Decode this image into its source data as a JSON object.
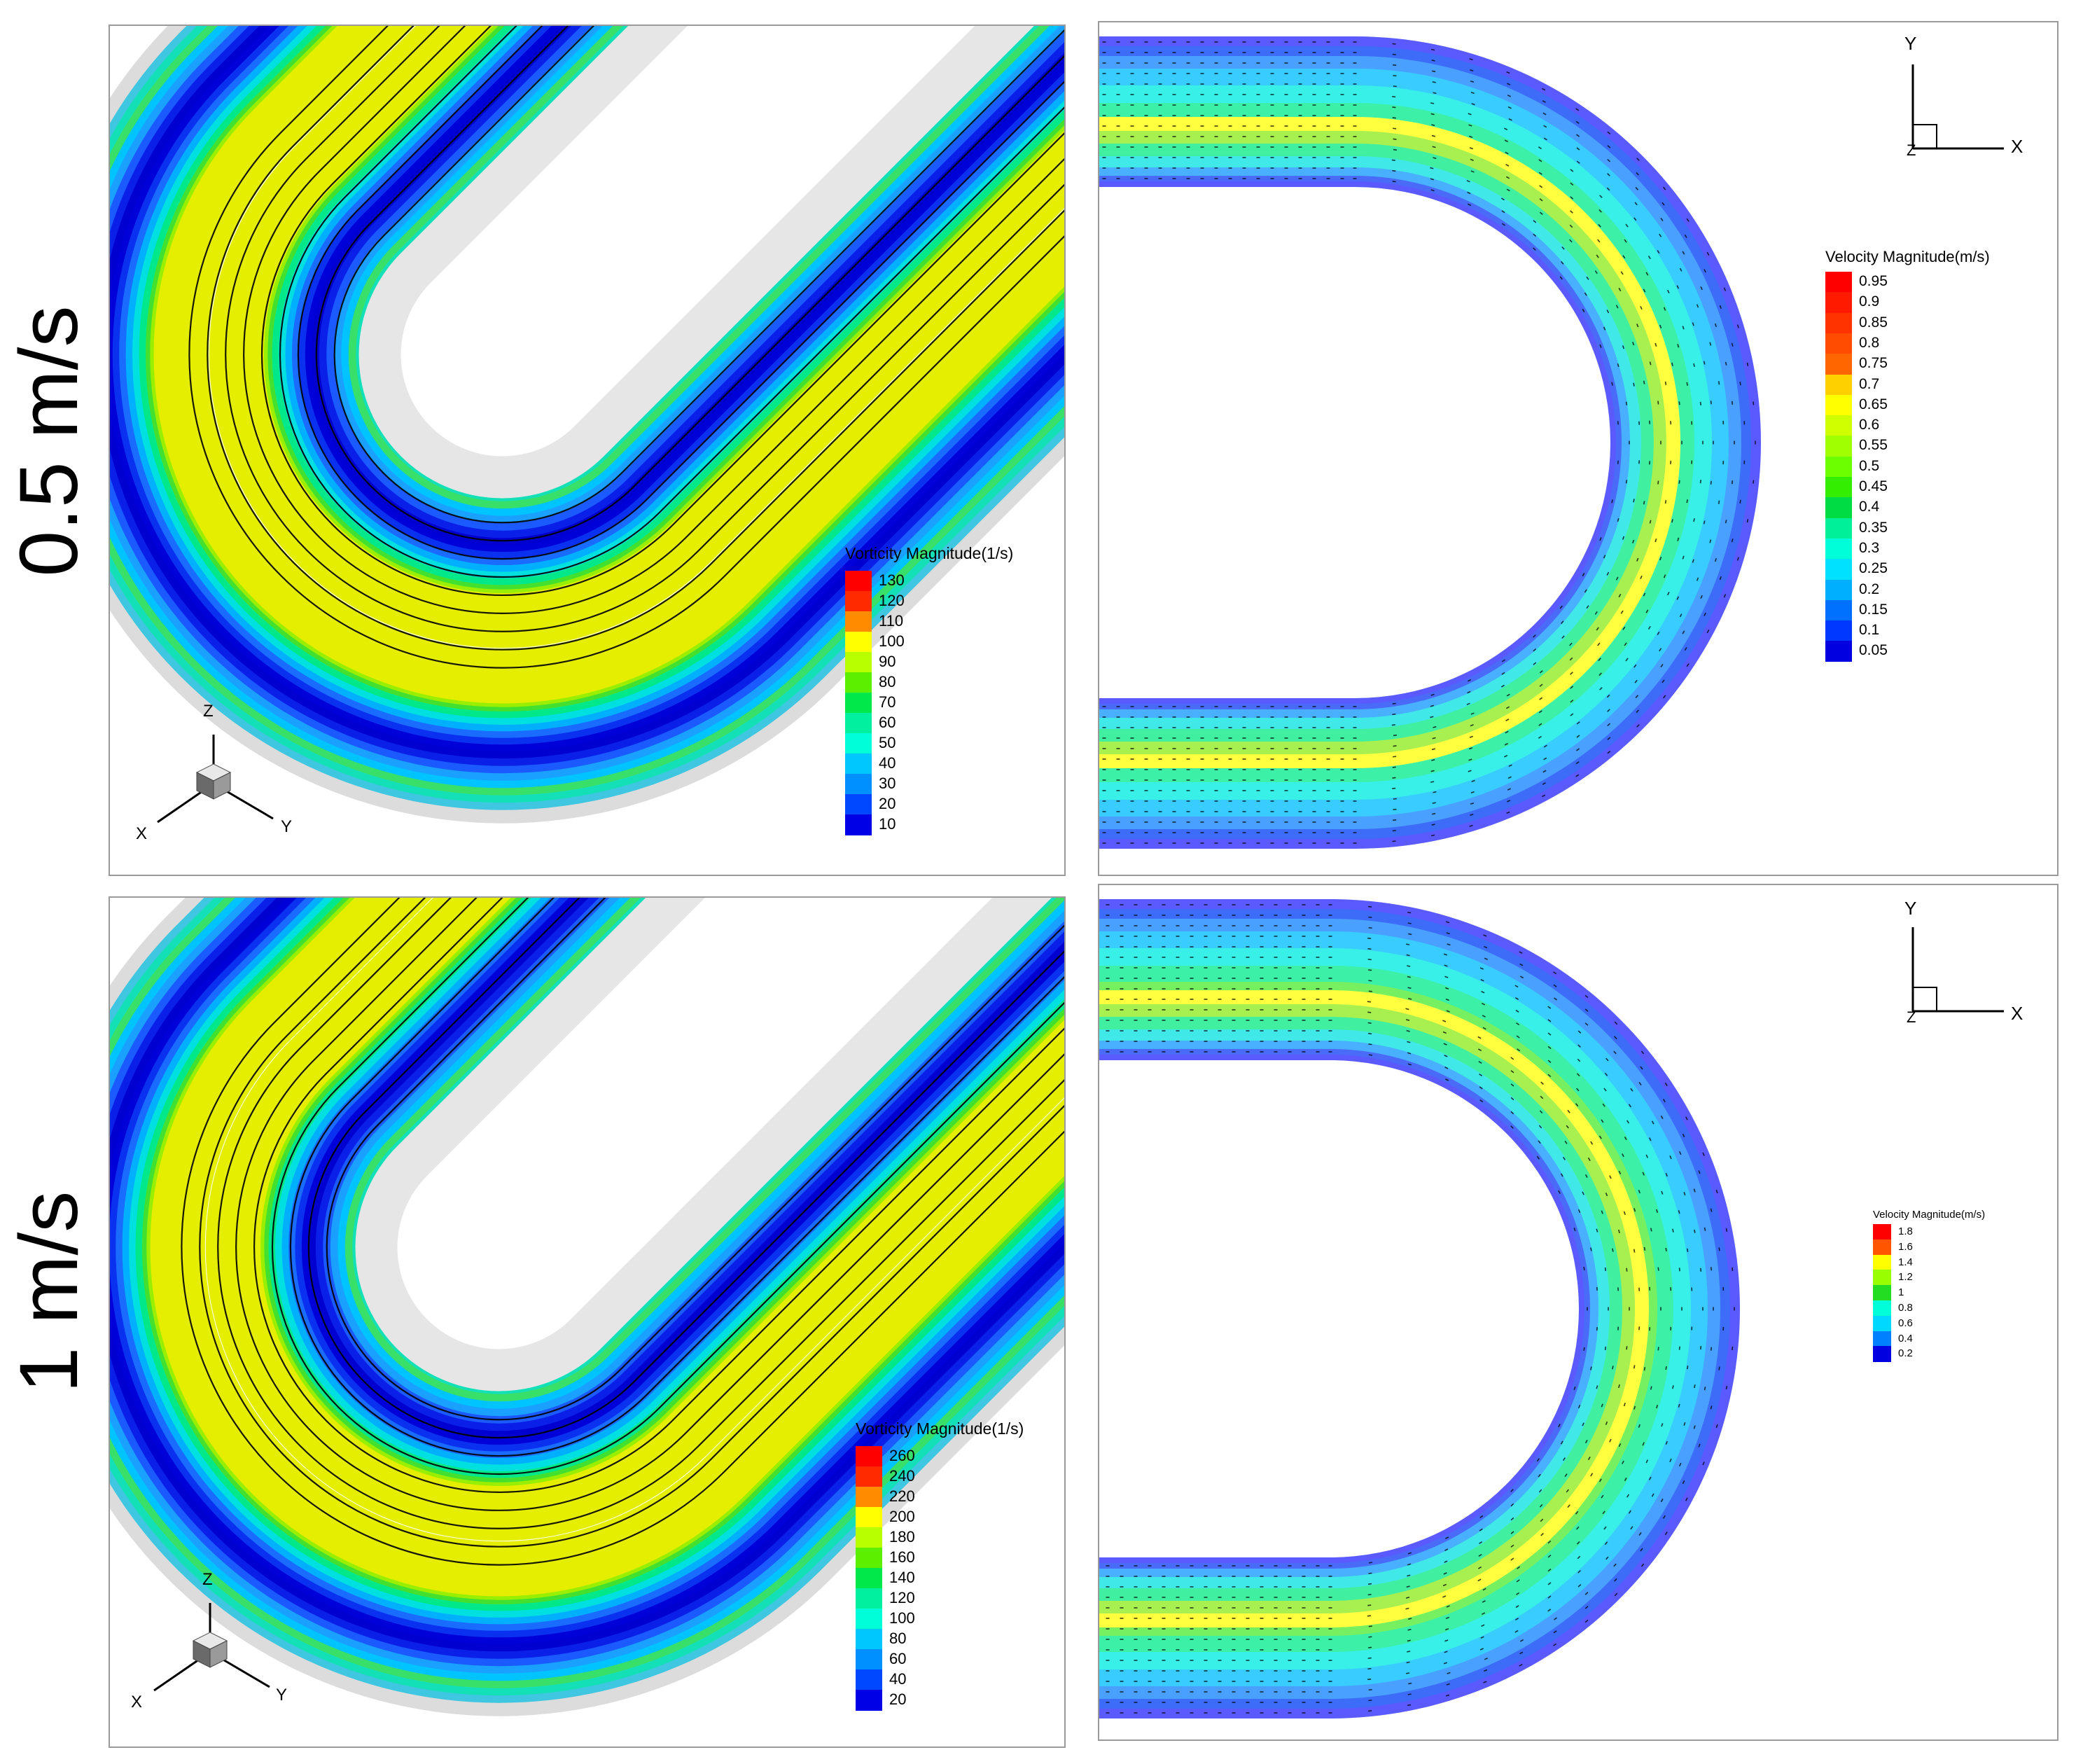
{
  "row_labels": [
    "0.5 m/s",
    "1 m/s"
  ],
  "panels": {
    "top_left": {
      "legend_title": "Vorticity Magnitude(1/s)",
      "levels": [
        "130",
        "120",
        "110",
        "100",
        "90",
        "80",
        "70",
        "60",
        "50",
        "40",
        "30",
        "20",
        "10"
      ],
      "colors": [
        "#ff0000",
        "#ff2a00",
        "#ff8c00",
        "#ffff00",
        "#b8ff00",
        "#5cf000",
        "#00e84a",
        "#00f0a0",
        "#00ffd8",
        "#00c8ff",
        "#0090ff",
        "#0048ff",
        "#0000e6"
      ],
      "axes": {
        "z": "Z",
        "x": "X",
        "y": "Y"
      }
    },
    "top_right": {
      "legend_title": "Velocity Magnitude(m/s)",
      "levels": [
        "0.95",
        "0.9",
        "0.85",
        "0.8",
        "0.75",
        "0.7",
        "0.65",
        "0.6",
        "0.55",
        "0.5",
        "0.45",
        "0.4",
        "0.35",
        "0.3",
        "0.25",
        "0.2",
        "0.15",
        "0.1",
        "0.05"
      ],
      "colors": [
        "#ff0000",
        "#ff1a00",
        "#ff3300",
        "#ff4c00",
        "#ff6600",
        "#ffd000",
        "#ffff00",
        "#d0ff00",
        "#a0ff00",
        "#6cff00",
        "#33ee00",
        "#00dd44",
        "#00f09a",
        "#00ffd8",
        "#00e0ff",
        "#00b0ff",
        "#0070ff",
        "#0038ff",
        "#0000e0"
      ],
      "axes": {
        "y": "Y",
        "x": "X",
        "z": "Z"
      }
    },
    "bottom_left": {
      "legend_title": "Vorticity Magnitude(1/s)",
      "levels": [
        "260",
        "240",
        "220",
        "200",
        "180",
        "160",
        "140",
        "120",
        "100",
        "80",
        "60",
        "40",
        "20"
      ],
      "colors": [
        "#ff0000",
        "#ff2a00",
        "#ff8c00",
        "#ffff00",
        "#b8ff00",
        "#5cf000",
        "#00e84a",
        "#00f0a0",
        "#00ffd8",
        "#00c8ff",
        "#0090ff",
        "#0048ff",
        "#0000e6"
      ],
      "axes": {
        "z": "Z",
        "x": "X",
        "y": "Y"
      }
    },
    "bottom_right": {
      "legend_title": "Velocity Magnitude(m/s)",
      "levels": [
        "1.8",
        "1.6",
        "1.4",
        "1.2",
        "1",
        "0.8",
        "0.6",
        "0.4",
        "0.2"
      ],
      "colors": [
        "#ff0000",
        "#ff5500",
        "#ffff00",
        "#99ff00",
        "#22dd22",
        "#00ffd8",
        "#00d8ff",
        "#0080ff",
        "#0000e0"
      ],
      "axes": {
        "y": "Y",
        "x": "X",
        "z": "Z"
      }
    }
  }
}
